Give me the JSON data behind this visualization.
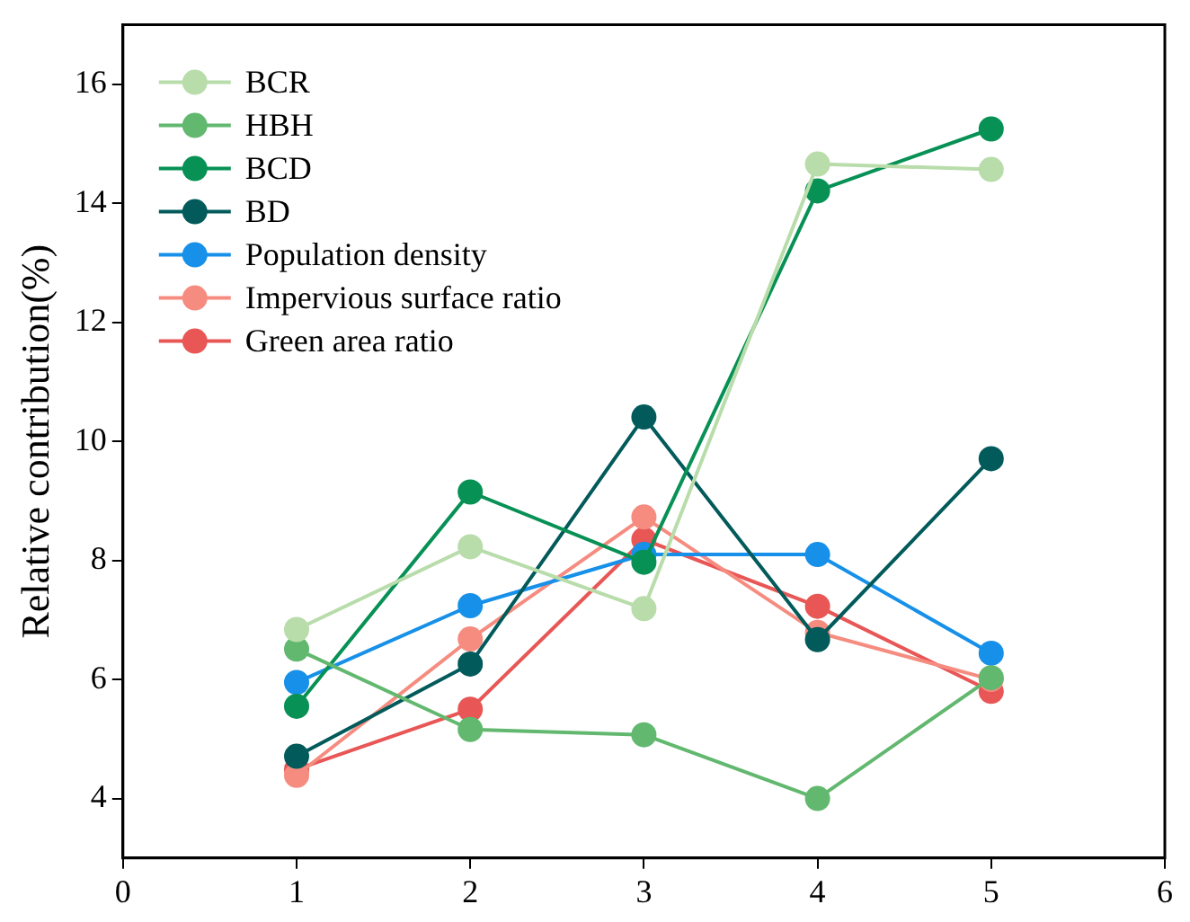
{
  "chart_data": {
    "type": "line",
    "ylabel": "Relative contribution(%)",
    "x": [
      1,
      2,
      3,
      4,
      5
    ],
    "xlim": [
      0,
      6
    ],
    "xticks": [
      0,
      1,
      2,
      3,
      4,
      5,
      6
    ],
    "ylim": [
      3,
      17
    ],
    "yticks": [
      4,
      6,
      8,
      10,
      12,
      14,
      16
    ],
    "marker": "circle",
    "line_style": "solid",
    "legend": "top left",
    "grid": false,
    "series": [
      {
        "name": "BCR",
        "color": "#b8dcaa",
        "values": [
          6.84,
          8.23,
          7.19,
          14.66,
          14.57
        ]
      },
      {
        "name": "HBH",
        "color": "#62b86f",
        "values": [
          6.51,
          5.16,
          5.07,
          4.0,
          6.03
        ]
      },
      {
        "name": "BCD",
        "color": "#079155",
        "values": [
          5.55,
          9.15,
          7.97,
          14.21,
          15.25
        ]
      },
      {
        "name": "BD",
        "color": "#025a5a",
        "values": [
          4.71,
          6.26,
          10.41,
          6.67,
          9.71
        ]
      },
      {
        "name": "Population density",
        "color": "#1690e8",
        "values": [
          5.95,
          7.24,
          8.1,
          8.1,
          6.44
        ]
      },
      {
        "name": "Impervious surface ratio",
        "color": "#f68c80",
        "values": [
          4.39,
          6.68,
          8.73,
          6.79,
          6.0
        ]
      },
      {
        "name": "Green area ratio",
        "color": "#e85656",
        "values": [
          4.49,
          5.5,
          8.35,
          7.23,
          5.8
        ]
      }
    ]
  }
}
